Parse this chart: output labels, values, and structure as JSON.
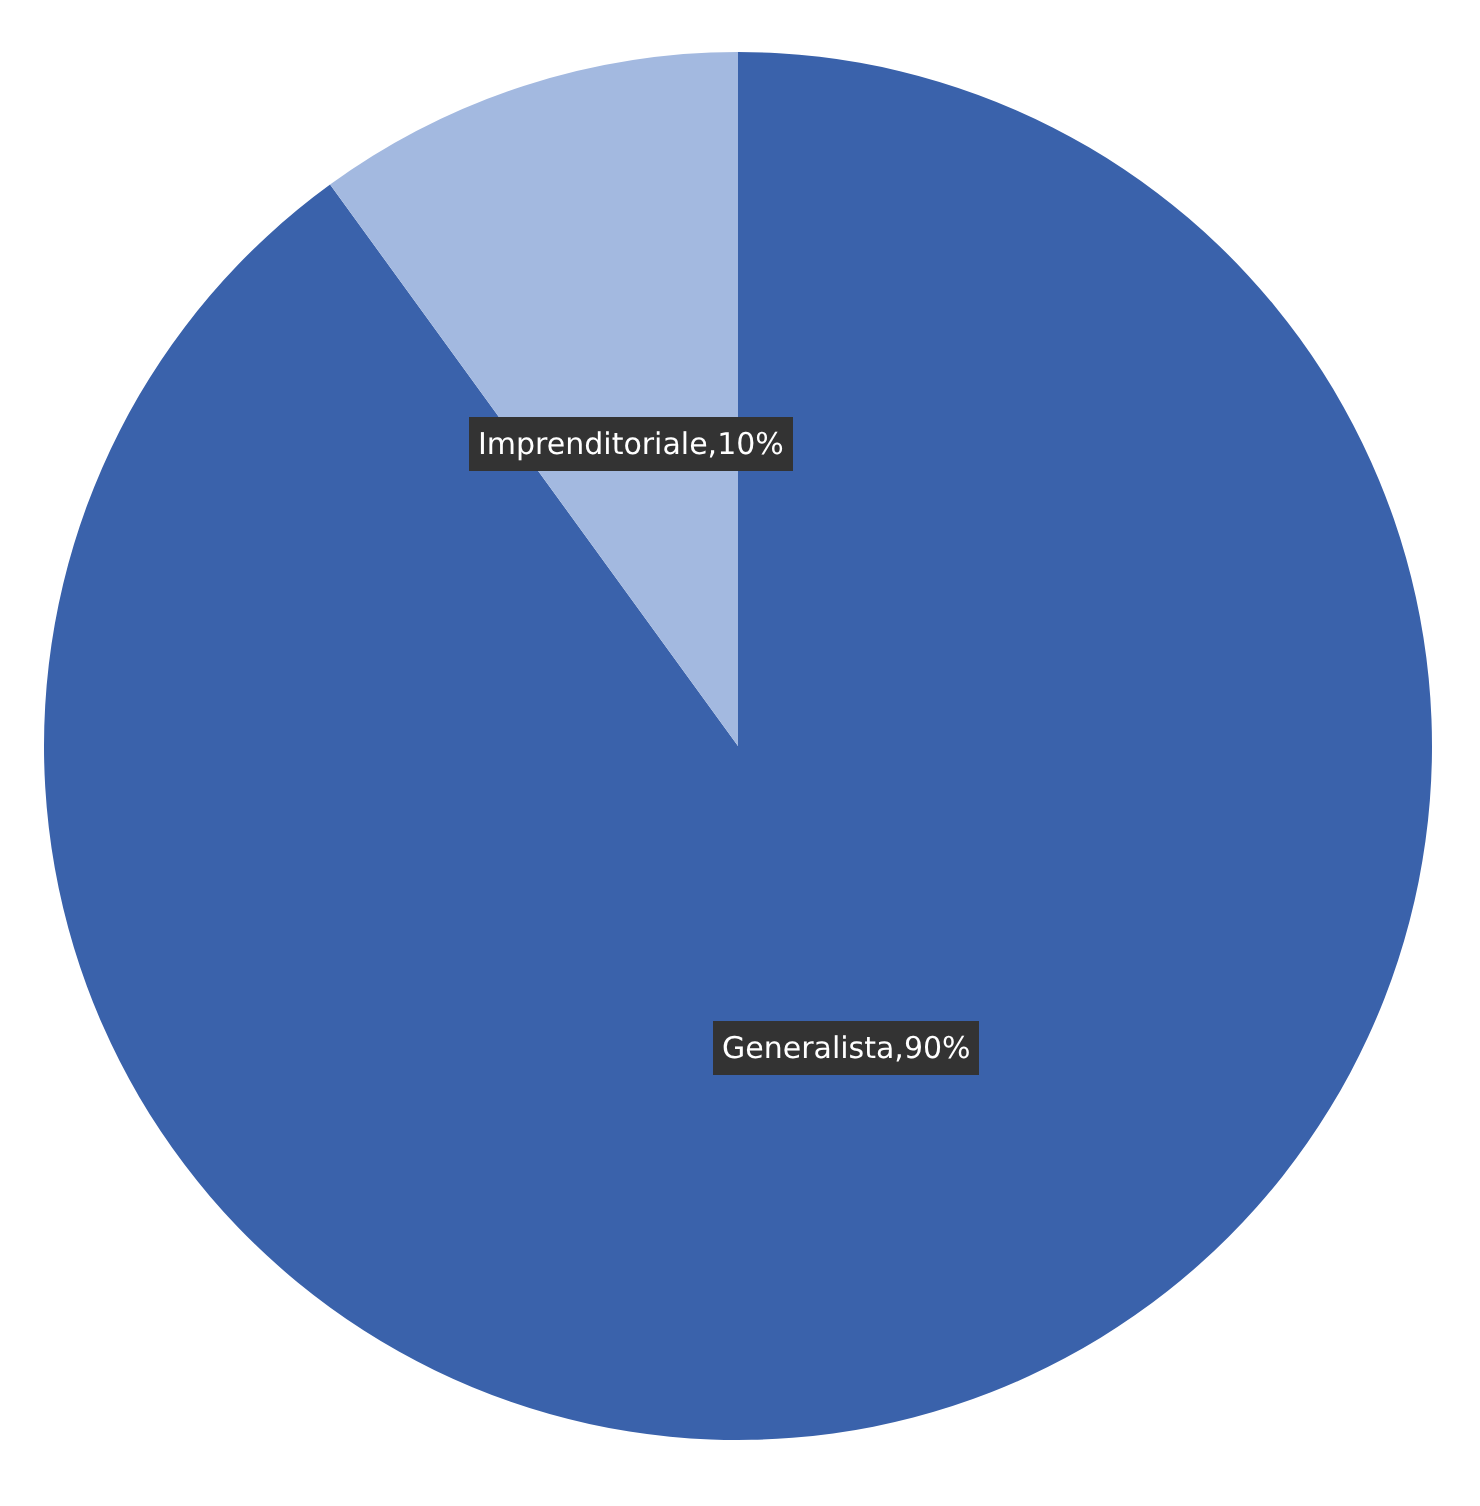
{
  "chart_data": {
    "type": "pie",
    "categories": [
      "Generalista",
      "Imprenditoriale"
    ],
    "values": [
      90,
      10
    ],
    "colors": [
      "#3a62ab",
      "#a3b9e0"
    ],
    "value_labels": [
      "90%",
      "10%"
    ]
  }
}
